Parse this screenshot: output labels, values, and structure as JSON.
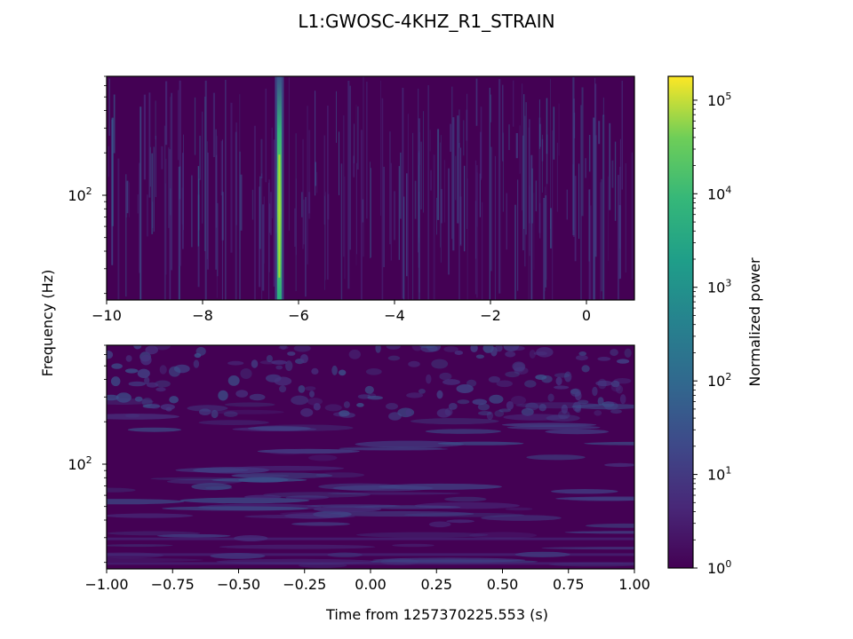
{
  "chart_data": {
    "title": "L1:GWOSC-4KHZ_R1_STRAIN",
    "panels": [
      {
        "type": "heatmap",
        "x_range": [
          -10,
          1
        ],
        "y_range_hz": [
          18,
          700
        ],
        "y_scale": "log",
        "x_ticks": [
          -10,
          -8,
          -6,
          -4,
          -2,
          0
        ],
        "x_tick_labels": [
          "−10",
          "−8",
          "−6",
          "−4",
          "−2",
          "0"
        ],
        "y_major_ticks": [
          {
            "value": 100,
            "base": "10",
            "exp": "2"
          }
        ],
        "description": "Wide-window Q-transform; bright vertical transient near t = -6.4 s",
        "transient_time": -6.4
      },
      {
        "type": "heatmap",
        "x_range": [
          -1,
          1
        ],
        "y_range_hz": [
          18,
          700
        ],
        "y_scale": "log",
        "x_ticks": [
          -1,
          -0.75,
          -0.5,
          -0.25,
          0,
          0.25,
          0.5,
          0.75,
          1
        ],
        "x_tick_labels": [
          "−1.00",
          "−0.75",
          "−0.50",
          "−0.25",
          "0.00",
          "0.25",
          "0.50",
          "0.75",
          "1.00"
        ],
        "y_major_ticks": [
          {
            "value": 100,
            "base": "10",
            "exp": "2"
          }
        ],
        "description": "Zoomed Q-transform around event time; mostly low-power noise"
      }
    ],
    "ylabel": "Frequency (Hz)",
    "xlabel": "Time from 1257370225.553 (s)",
    "colorbar": {
      "label": "Normalized power",
      "scale": "log",
      "range": [
        1,
        180000
      ],
      "colormap": "viridis",
      "ticks": [
        {
          "value": 1,
          "base": "10",
          "exp": "0"
        },
        {
          "value": 10,
          "base": "10",
          "exp": "1"
        },
        {
          "value": 100,
          "base": "10",
          "exp": "2"
        },
        {
          "value": 1000,
          "base": "10",
          "exp": "3"
        },
        {
          "value": 10000,
          "base": "10",
          "exp": "4"
        },
        {
          "value": 100000,
          "base": "10",
          "exp": "5"
        }
      ]
    },
    "colors": {
      "viridis_low": "#440154",
      "viridis_mid": "#21918c",
      "viridis_high": "#fde725"
    }
  }
}
